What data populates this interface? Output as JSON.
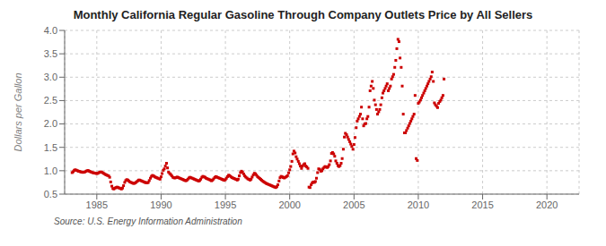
{
  "chart_data": {
    "type": "scatter",
    "title": "Monthly California Regular Gasoline Through Company Outlets Price by All Sellers",
    "ylabel": "Dollars per Gallon",
    "annotations": [
      "Source: U.S. Energy Information Administration"
    ],
    "color": "#cc0000",
    "marker": "square",
    "grid": true,
    "xlim": [
      1982.5,
      2022.5
    ],
    "xticks": [
      1985,
      1990,
      1995,
      2000,
      2005,
      2010,
      2015,
      2020
    ],
    "ylim": [
      0.5,
      4.0
    ],
    "yticks": [
      0.5,
      {
        "value": 1.0,
        "label": "1.0"
      },
      1.5,
      {
        "value": 2.0,
        "label": "2.0"
      },
      2.5,
      {
        "value": 3.0,
        "label": "3.0"
      },
      3.5,
      {
        "value": 4.0,
        "label": "4.0"
      }
    ],
    "x": [
      1983.08,
      1983.17,
      1983.25,
      1983.33,
      1983.42,
      1983.5,
      1983.58,
      1983.67,
      1983.75,
      1983.83,
      1983.92,
      1984.0,
      1984.08,
      1984.17,
      1984.25,
      1984.33,
      1984.42,
      1984.5,
      1984.58,
      1984.67,
      1984.75,
      1984.83,
      1984.92,
      1985.0,
      1985.08,
      1985.17,
      1985.25,
      1985.33,
      1985.42,
      1985.5,
      1985.58,
      1985.67,
      1985.75,
      1985.83,
      1985.92,
      1986.0,
      1986.08,
      1986.17,
      1986.25,
      1986.33,
      1986.42,
      1986.5,
      1986.58,
      1986.67,
      1986.75,
      1986.83,
      1986.92,
      1987.0,
      1987.08,
      1987.17,
      1987.25,
      1987.33,
      1987.42,
      1987.5,
      1987.58,
      1987.67,
      1987.75,
      1987.83,
      1987.92,
      1988.0,
      1988.08,
      1988.17,
      1988.25,
      1988.33,
      1988.42,
      1988.5,
      1988.58,
      1988.67,
      1988.75,
      1988.83,
      1988.92,
      1989.0,
      1989.08,
      1989.17,
      1989.25,
      1989.33,
      1989.42,
      1989.5,
      1989.58,
      1989.67,
      1989.75,
      1989.83,
      1989.92,
      1990.0,
      1990.08,
      1990.17,
      1990.25,
      1990.33,
      1990.42,
      1990.5,
      1990.58,
      1990.67,
      1990.75,
      1990.83,
      1990.92,
      1991.0,
      1991.08,
      1991.17,
      1991.25,
      1991.33,
      1991.42,
      1991.5,
      1991.58,
      1991.67,
      1991.75,
      1991.83,
      1991.92,
      1992.0,
      1992.08,
      1992.17,
      1992.25,
      1992.33,
      1992.42,
      1992.5,
      1992.58,
      1992.67,
      1992.75,
      1992.83,
      1992.92,
      1993.0,
      1993.08,
      1993.17,
      1993.25,
      1993.33,
      1993.42,
      1993.5,
      1993.58,
      1993.67,
      1993.75,
      1993.83,
      1993.92,
      1994.0,
      1994.08,
      1994.17,
      1994.25,
      1994.33,
      1994.42,
      1994.5,
      1994.58,
      1994.67,
      1994.75,
      1994.83,
      1994.92,
      1995.0,
      1995.08,
      1995.17,
      1995.25,
      1995.33,
      1995.42,
      1995.5,
      1995.58,
      1995.67,
      1995.75,
      1995.83,
      1995.92,
      1996.0,
      1996.08,
      1996.17,
      1996.25,
      1996.33,
      1996.42,
      1996.5,
      1996.58,
      1996.67,
      1996.75,
      1996.83,
      1996.92,
      1997.0,
      1997.08,
      1997.17,
      1997.25,
      1997.33,
      1997.42,
      1997.5,
      1997.58,
      1997.67,
      1997.75,
      1997.83,
      1997.92,
      1998.0,
      1998.08,
      1998.17,
      1998.25,
      1998.33,
      1998.42,
      1998.5,
      1998.58,
      1998.67,
      1998.75,
      1998.83,
      1998.92,
      1999.0,
      1999.08,
      1999.17,
      1999.25,
      1999.33,
      1999.42,
      1999.5,
      1999.58,
      1999.67,
      1999.75,
      1999.83,
      1999.92,
      2000.0,
      2000.08,
      2000.17,
      2000.25,
      2000.33,
      2000.42,
      2000.5,
      2000.58,
      2000.67,
      2000.75,
      2000.83,
      2000.92,
      2001.0,
      2001.08,
      2001.17,
      2001.25,
      2001.33,
      2001.42,
      2001.5,
      2001.58,
      2001.67,
      2001.75,
      2001.83,
      2001.92,
      2002.0,
      2002.08,
      2002.17,
      2002.25,
      2002.33,
      2002.42,
      2002.5,
      2002.58,
      2002.67,
      2002.75,
      2002.83,
      2002.92,
      2003.0,
      2003.08,
      2003.17,
      2003.25,
      2003.33,
      2003.42,
      2003.5,
      2003.58,
      2003.67,
      2003.75,
      2003.83,
      2003.92,
      2004.0,
      2004.08,
      2004.17,
      2004.25,
      2004.33,
      2004.42,
      2004.5,
      2004.58,
      2004.67,
      2004.75,
      2004.83,
      2004.92,
      2005.0,
      2005.08,
      2005.17,
      2005.25,
      2005.33,
      2005.42,
      2005.5,
      2005.58,
      2005.67,
      2005.75,
      2005.83,
      2005.92,
      2006.0,
      2006.08,
      2006.17,
      2006.25,
      2006.33,
      2006.42,
      2006.5,
      2006.58,
      2006.67,
      2006.75,
      2006.83,
      2006.92,
      2007.0,
      2007.08,
      2007.17,
      2007.25,
      2007.33,
      2007.42,
      2007.5,
      2007.58,
      2007.67,
      2007.75,
      2007.83,
      2007.92,
      2008.0,
      2008.08,
      2008.17,
      2008.25,
      2008.33,
      2008.42,
      2008.5,
      2008.58,
      2008.67,
      2008.75,
      2008.83,
      2008.92,
      2009.0,
      2009.08,
      2009.17,
      2009.25,
      2009.33,
      2009.42,
      2009.5,
      2009.58,
      2009.67,
      2009.75,
      2009.83,
      2009.92,
      2010.0,
      2010.08,
      2010.17,
      2010.25,
      2010.33,
      2010.42,
      2010.5,
      2010.58,
      2010.67,
      2010.75,
      2010.83,
      2010.92,
      2011.0,
      2011.08,
      2011.17,
      2011.25,
      2011.33,
      2011.42,
      2011.5,
      2011.58,
      2011.67,
      2011.75,
      2011.83,
      2011.92,
      2012.0
    ],
    "values": [
      0.96,
      0.98,
      1.01,
      1.02,
      1.01,
      1.0,
      0.99,
      0.985,
      0.975,
      0.97,
      0.965,
      0.97,
      0.975,
      0.99,
      1.0,
      1.005,
      0.99,
      0.98,
      0.97,
      0.96,
      0.955,
      0.95,
      0.945,
      0.94,
      0.945,
      0.96,
      0.97,
      0.975,
      0.965,
      0.95,
      0.935,
      0.92,
      0.91,
      0.9,
      0.89,
      0.86,
      0.76,
      0.67,
      0.62,
      0.61,
      0.63,
      0.64,
      0.65,
      0.64,
      0.63,
      0.62,
      0.61,
      0.63,
      0.68,
      0.75,
      0.79,
      0.81,
      0.8,
      0.78,
      0.76,
      0.75,
      0.74,
      0.73,
      0.73,
      0.74,
      0.76,
      0.78,
      0.8,
      0.8,
      0.79,
      0.78,
      0.77,
      0.76,
      0.75,
      0.745,
      0.74,
      0.75,
      0.79,
      0.84,
      0.88,
      0.9,
      0.89,
      0.87,
      0.86,
      0.85,
      0.84,
      0.83,
      0.82,
      0.87,
      0.94,
      1.01,
      1.04,
      1.1,
      1.16,
      1.06,
      0.97,
      0.94,
      0.92,
      0.89,
      0.86,
      0.85,
      0.845,
      0.855,
      0.865,
      0.855,
      0.845,
      0.835,
      0.825,
      0.815,
      0.805,
      0.795,
      0.785,
      0.795,
      0.82,
      0.845,
      0.86,
      0.85,
      0.84,
      0.83,
      0.82,
      0.81,
      0.8,
      0.79,
      0.78,
      0.79,
      0.82,
      0.86,
      0.88,
      0.87,
      0.86,
      0.84,
      0.83,
      0.82,
      0.81,
      0.8,
      0.785,
      0.8,
      0.825,
      0.855,
      0.875,
      0.865,
      0.855,
      0.845,
      0.835,
      0.825,
      0.815,
      0.805,
      0.795,
      0.81,
      0.84,
      0.875,
      0.905,
      0.895,
      0.875,
      0.855,
      0.845,
      0.835,
      0.825,
      0.815,
      0.8,
      0.82,
      0.89,
      0.96,
      0.99,
      0.97,
      0.93,
      0.89,
      0.865,
      0.845,
      0.825,
      0.815,
      0.8,
      0.82,
      0.865,
      0.91,
      0.945,
      0.935,
      0.905,
      0.875,
      0.855,
      0.835,
      0.815,
      0.795,
      0.775,
      0.76,
      0.745,
      0.73,
      0.72,
      0.71,
      0.7,
      0.69,
      0.68,
      0.67,
      0.66,
      0.65,
      0.64,
      0.66,
      0.7,
      0.78,
      0.85,
      0.88,
      0.87,
      0.855,
      0.845,
      0.86,
      0.875,
      0.895,
      0.955,
      1.02,
      1.09,
      1.2,
      1.36,
      1.42,
      1.38,
      1.3,
      1.25,
      1.2,
      1.15,
      1.1,
      1.05,
      1.1,
      1.13,
      1.15,
      1.1,
      1.08,
      1.05,
      0.65,
      0.64,
      0.7,
      0.74,
      0.76,
      0.75,
      0.77,
      0.84,
      0.96,
      1.04,
      1.03,
      0.99,
      1.0,
      1.04,
      1.07,
      1.09,
      1.08,
      1.07,
      1.09,
      1.13,
      1.21,
      1.37,
      1.39,
      1.36,
      1.31,
      1.21,
      1.16,
      1.11,
      1.09,
      1.11,
      1.16,
      1.26,
      1.46,
      1.72,
      1.8,
      1.77,
      1.72,
      1.67,
      1.62,
      1.57,
      1.52,
      1.46,
      1.56,
      1.71,
      1.92,
      2.06,
      2.11,
      2.16,
      2.21,
      2.36,
      2.11,
      1.96,
      2.0,
      2.01,
      2.11,
      2.16,
      2.36,
      2.71,
      2.81,
      2.91,
      2.76,
      2.51,
      2.41,
      2.31,
      2.21,
      2.26,
      2.31,
      2.41,
      2.56,
      2.66,
      2.71,
      2.76,
      2.81,
      2.86,
      2.71,
      2.76,
      2.81,
      2.96,
      3.01,
      3.06,
      3.21,
      3.36,
      3.61,
      3.81,
      3.76,
      3.41,
      3.21,
      2.81,
      2.21,
      1.81,
      1.81,
      1.86,
      1.91,
      1.96,
      2.01,
      2.06,
      2.11,
      2.16,
      2.21,
      2.61,
      1.26,
      1.22,
      2.44,
      2.47,
      2.51,
      2.56,
      2.61,
      2.66,
      2.71,
      2.76,
      2.81,
      2.86,
      2.91,
      2.96,
      3.01,
      3.11,
      2.91,
      2.45,
      2.41,
      2.38,
      2.35,
      2.44,
      2.48,
      2.51,
      2.56,
      2.61,
      2.96
    ]
  }
}
